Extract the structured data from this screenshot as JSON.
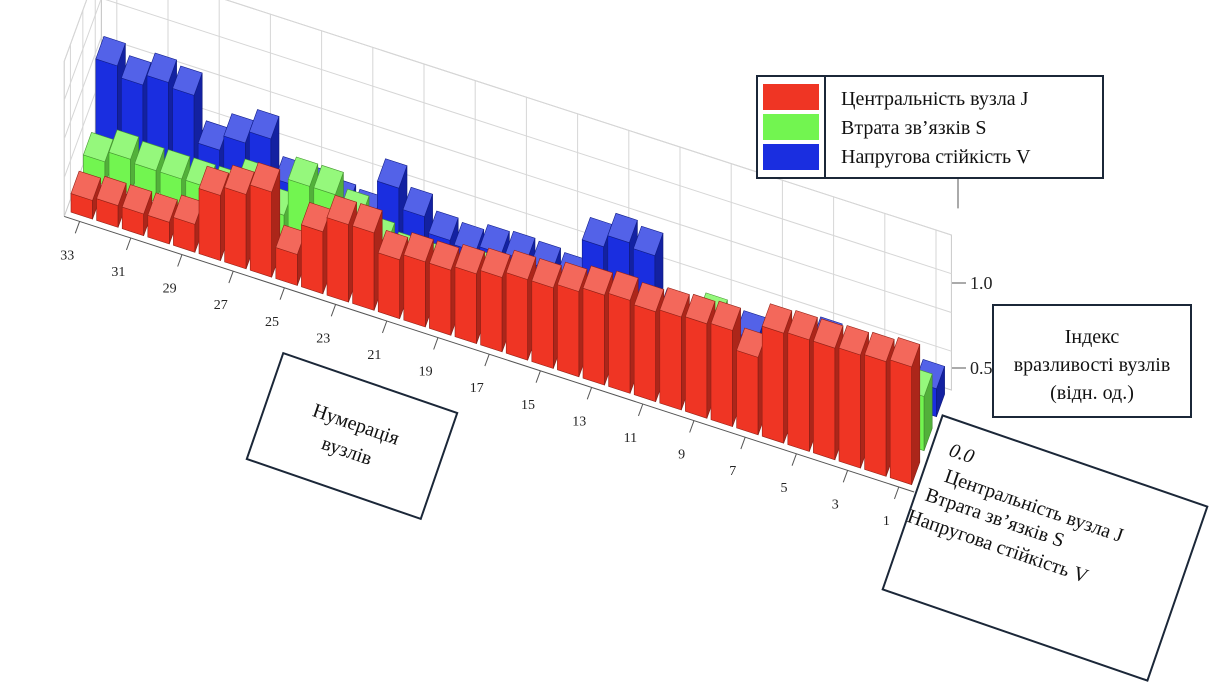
{
  "chart_data": {
    "type": "bar",
    "projection": "3d",
    "x_label": "Нумерація вузлів",
    "z_label": "Індекс вразливості вузлів (відн. од.)",
    "x_tick_labels": [
      "1",
      "3",
      "5",
      "7",
      "9",
      "11",
      "13",
      "15",
      "17",
      "19",
      "21",
      "23",
      "25",
      "27",
      "29",
      "31",
      "33"
    ],
    "z_tick_labels": [
      "0.0",
      "0.5",
      "1.0"
    ],
    "zlim": [
      0,
      1.0
    ],
    "legend_position": "top-right",
    "categories": [
      1,
      2,
      3,
      4,
      5,
      6,
      7,
      8,
      9,
      10,
      11,
      12,
      13,
      14,
      15,
      16,
      17,
      18,
      19,
      20,
      21,
      22,
      23,
      24,
      25,
      26,
      27,
      28,
      29,
      30,
      31,
      32,
      33
    ],
    "series": [
      {
        "name": "Централь­ність вузла J",
        "color": "#ef3524",
        "values": [
          0.76,
          0.74,
          0.73,
          0.72,
          0.72,
          0.71,
          0.5,
          0.62,
          0.61,
          0.6,
          0.58,
          0.6,
          0.58,
          0.55,
          0.52,
          0.52,
          0.48,
          0.45,
          0.42,
          0.42,
          0.38,
          0.5,
          0.5,
          0.4,
          0.2,
          0.55,
          0.48,
          0.42,
          0.18,
          0.14,
          0.14,
          0.14,
          0.12
        ]
      },
      {
        "name": "Втрата зв’язків S",
        "color": "#72f550",
        "values": [
          0.35,
          0.3,
          0.28,
          0.26,
          0.25,
          0.26,
          0.22,
          0.12,
          0.4,
          0.12,
          0.18,
          0.17,
          0.18,
          0.17,
          0.16,
          0.16,
          0.2,
          0.2,
          0.12,
          0.15,
          0.15,
          0.2,
          0.32,
          0.42,
          0.42,
          0.18,
          0.3,
          0.2,
          0.2,
          0.2,
          0.2,
          0.22,
          0.15
        ]
      },
      {
        "name": "Напругова стійкість V",
        "color": "#1a2ee0",
        "values": [
          0.18,
          0.06,
          0.05,
          0.05,
          0.24,
          0.05,
          0.05,
          0.12,
          0.12,
          0.1,
          0.1,
          0.45,
          0.48,
          0.4,
          0.12,
          0.14,
          0.15,
          0.14,
          0.1,
          0.12,
          0.22,
          0.35,
          0.1,
          0.12,
          0.15,
          0.15,
          0.4,
          0.32,
          0.22,
          0.52,
          0.55,
          0.48,
          0.55
        ]
      }
    ]
  },
  "legend": {
    "items": [
      {
        "label": "Центральність вузла J",
        "color": "#ef3524"
      },
      {
        "label": "Втрата зв’язків S",
        "color": "#72f550"
      },
      {
        "label": "Напругова стійкість V",
        "color": "#1a2ee0"
      }
    ]
  },
  "boxes": {
    "x_axis_box": [
      "Нумерація",
      "вузлів"
    ],
    "z_axis_box": [
      "Індекс",
      "вразливості вузлів",
      "(відн. од.)"
    ],
    "series_axis_box": {
      "zero": "0.0",
      "lines": [
        "Центральність вузла J",
        "Втрата зв’язків  S",
        "Напругова стійкість V"
      ]
    }
  }
}
